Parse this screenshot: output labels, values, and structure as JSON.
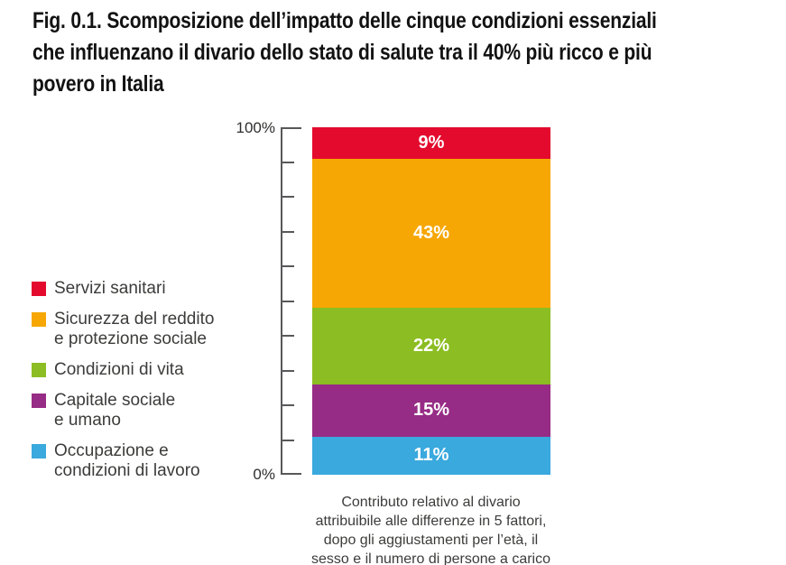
{
  "figure": {
    "title": "Fig. 0.1. Scomposizione dell’impatto delle cinque condizioni essenziali\nche influenzano il divario dello stato di salute tra il 40% più ricco e più\npovero in Italia",
    "caption": "Contributo relativo al divario\nattribuibile alle differenze in 5 fattori,\ndopo gli aggiustamenti per l’età, il\nsesso e il numero di persone a carico"
  },
  "chart": {
    "y_axis": {
      "top_label": "100%",
      "bottom_label": "0%"
    }
  },
  "legend": {
    "items": [
      {
        "label": "Servizi sanitari",
        "color": "#E30A2E"
      },
      {
        "label": "Sicurezza del reddito\ne protezione sociale",
        "color": "#F6A704"
      },
      {
        "label": "Condizioni di vita",
        "color": "#8CBD22"
      },
      {
        "label": "Capitale sociale\ne umano",
        "color": "#962C85"
      },
      {
        "label": "Occupazione e\ncondizioni di lavoro",
        "color": "#3AA9DD"
      }
    ]
  },
  "chart_data": {
    "type": "bar",
    "stacked": true,
    "title": "Scomposizione dell’impatto delle cinque condizioni essenziali che influenzano il divario dello stato di salute tra il 40% più ricco e più povero in Italia",
    "xlabel": "",
    "ylabel": "",
    "ylim": [
      0,
      100
    ],
    "yticks": [
      0,
      10,
      20,
      30,
      40,
      50,
      60,
      70,
      80,
      90,
      100
    ],
    "ytick_labels_shown": [
      "0%",
      "100%"
    ],
    "grid": false,
    "legend_position": "left",
    "stack_order_top_to_bottom": true,
    "series": [
      {
        "name": "Servizi sanitari",
        "value": 9,
        "display": "9%",
        "color": "#E30A2E"
      },
      {
        "name": "Sicurezza del reddito e protezione sociale",
        "value": 43,
        "display": "43%",
        "color": "#F6A704"
      },
      {
        "name": "Condizioni di vita",
        "value": 22,
        "display": "22%",
        "color": "#8CBD22"
      },
      {
        "name": "Capitale sociale e umano",
        "value": 15,
        "display": "15%",
        "color": "#962C85"
      },
      {
        "name": "Occupazione e condizioni di lavoro",
        "value": 11,
        "display": "11%",
        "color": "#3AA9DD"
      }
    ]
  }
}
